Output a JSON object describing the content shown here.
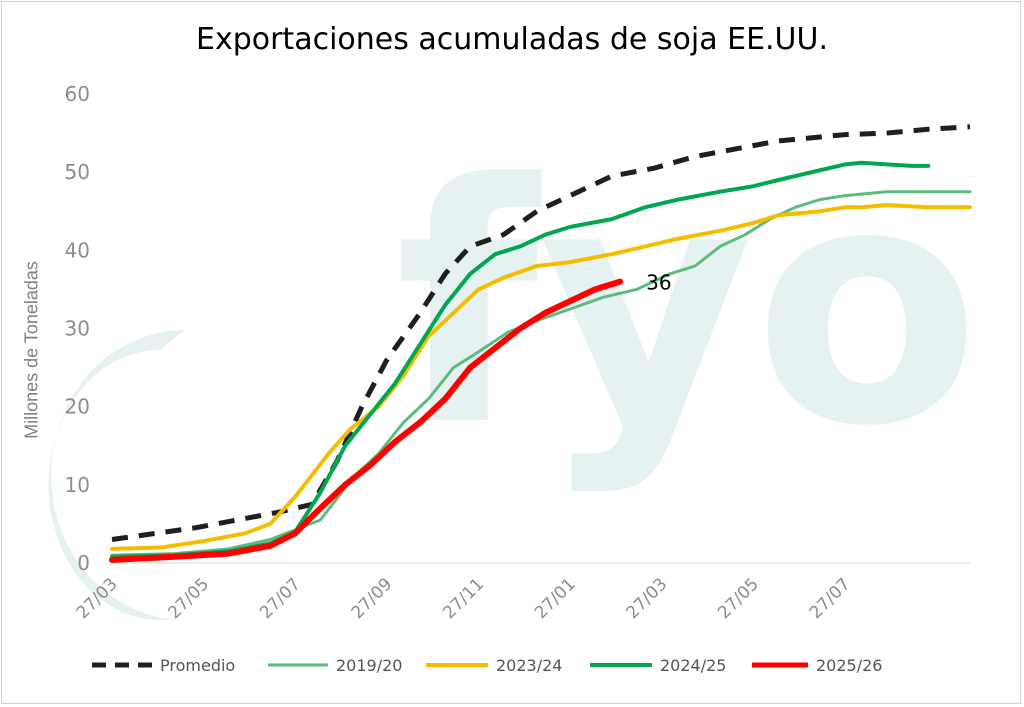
{
  "chart_data": {
    "type": "line",
    "title": "Exportaciones acumuladas de soja EE.UU.",
    "xlabel": "",
    "ylabel": "Millones de Toneladas",
    "ylim": [
      0,
      60
    ],
    "yticks": [
      "0",
      "10",
      "20",
      "30",
      "40",
      "50",
      "60"
    ],
    "xlim": [
      0,
      25
    ],
    "xticks": [
      {
        "x": 0,
        "label": "27/03"
      },
      {
        "x": 2.2,
        "label": "27/05"
      },
      {
        "x": 4.4,
        "label": "27/07"
      },
      {
        "x": 6.6,
        "label": "27/09"
      },
      {
        "x": 8.8,
        "label": "27/11"
      },
      {
        "x": 11.0,
        "label": "27/01"
      },
      {
        "x": 13.2,
        "label": "27/03"
      },
      {
        "x": 15.4,
        "label": "27/05"
      },
      {
        "x": 17.6,
        "label": "27/07"
      }
    ],
    "grid": false,
    "legend_position": "bottom",
    "watermark": "fyo",
    "annotation": {
      "text": "36"
    },
    "series": [
      {
        "name": "Promedio",
        "color": "#1f1f1f",
        "dashed": true,
        "width": 5,
        "x": [
          0,
          2,
          4,
          4.8,
          5.4,
          6.0,
          6.6,
          7.4,
          8.0,
          8.6,
          9.4,
          10.2,
          11.0,
          12.0,
          13.0,
          14.0,
          15.0,
          16.0,
          17.0,
          17.6,
          18.6,
          19.6,
          20.6
        ],
        "y": [
          3,
          4.5,
          6.5,
          7.5,
          13,
          20,
          26,
          32,
          37,
          40.5,
          42,
          45,
          47,
          49.5,
          50.5,
          52,
          53,
          54,
          54.5,
          54.8,
          55,
          55.5,
          55.8
        ]
      },
      {
        "name": "2019/20",
        "color": "#5dbb7e",
        "dashed": false,
        "width": 3,
        "x": [
          0,
          1.5,
          2.8,
          3.8,
          5.0,
          5.8,
          6.4,
          7.0,
          7.6,
          8.2,
          8.8,
          9.5,
          10.2,
          11.0,
          11.8,
          12.6,
          13.4,
          14.0,
          14.6,
          15.2,
          15.8,
          16.4,
          17.0,
          17.6,
          18.6,
          19.6,
          20.6
        ],
        "y": [
          1,
          1.2,
          1.8,
          3,
          5.5,
          11,
          14,
          18,
          21,
          25,
          27,
          29.5,
          31,
          32.5,
          34,
          35,
          37,
          38,
          40.5,
          42,
          44,
          45.5,
          46.5,
          47,
          47.5,
          47.5,
          47.5
        ]
      },
      {
        "name": "2023/24",
        "color": "#f5bd00",
        "dashed": false,
        "width": 4,
        "x": [
          0,
          1.2,
          2.2,
          3.2,
          3.8,
          4.4,
          5.2,
          5.7,
          6.4,
          7.0,
          7.6,
          8.2,
          8.8,
          9.4,
          10.2,
          11.0,
          12.0,
          12.8,
          13.6,
          14.6,
          15.4,
          16.0,
          17.0,
          17.6,
          18.0,
          18.6,
          19.6,
          20.6
        ],
        "y": [
          1.8,
          2,
          2.8,
          3.8,
          5,
          8.5,
          14,
          17,
          20,
          24,
          29,
          32,
          35,
          36.5,
          38,
          38.5,
          39.5,
          40.5,
          41.5,
          42.5,
          43.5,
          44.5,
          45,
          45.5,
          45.5,
          45.8,
          45.5,
          45.5
        ]
      },
      {
        "name": "2024/25",
        "color": "#00a651",
        "dashed": false,
        "width": 4,
        "x": [
          0,
          1.5,
          2.8,
          3.8,
          4.4,
          5.0,
          5.6,
          6.2,
          6.8,
          7.4,
          8.0,
          8.6,
          9.2,
          9.8,
          10.4,
          11.0,
          12.0,
          12.8,
          13.6,
          14.6,
          15.4,
          16.0,
          16.8,
          17.6,
          18.0,
          18.6,
          19.2,
          19.6
        ],
        "y": [
          0.8,
          1,
          1.5,
          2.5,
          4,
          9,
          15,
          19,
          23,
          28,
          33,
          37,
          39.5,
          40.5,
          42,
          43,
          44,
          45.5,
          46.5,
          47.5,
          48.2,
          49,
          50,
          51,
          51.2,
          51,
          50.8,
          50.8
        ]
      },
      {
        "name": "2025/26",
        "color": "#ff0000",
        "dashed": false,
        "width": 6,
        "x": [
          0,
          1.5,
          2.8,
          3.8,
          4.4,
          5.0,
          5.6,
          6.2,
          6.8,
          7.4,
          8.0,
          8.6,
          9.2,
          9.8,
          10.4,
          11.0,
          11.6,
          12.2
        ],
        "y": [
          0.4,
          0.8,
          1.2,
          2.2,
          3.8,
          7,
          10,
          12.5,
          15.5,
          18,
          21,
          25,
          27.5,
          30,
          32,
          33.5,
          35,
          36
        ]
      }
    ]
  }
}
